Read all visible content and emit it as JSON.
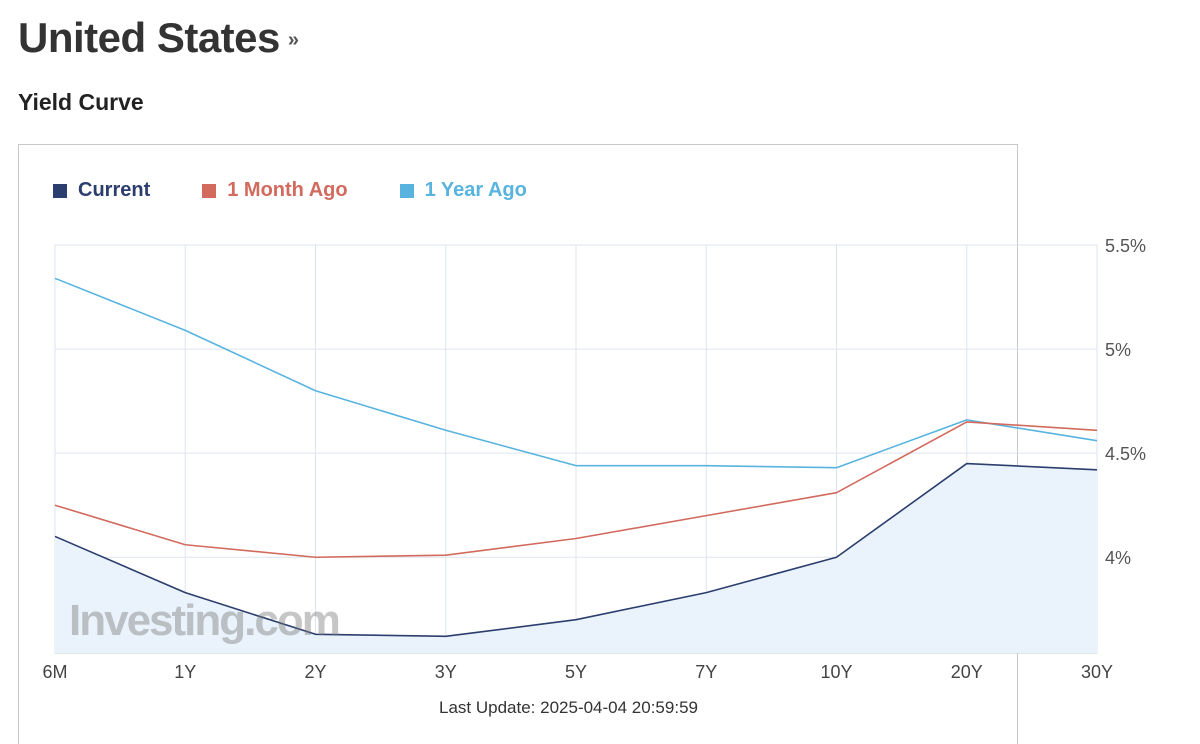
{
  "header": {
    "title": "United States",
    "title_link_icon": "double-chevron-right-icon",
    "subtitle": "Yield Curve"
  },
  "chart_data": {
    "type": "line",
    "categories": [
      "6M",
      "1Y",
      "2Y",
      "3Y",
      "5Y",
      "7Y",
      "10Y",
      "20Y",
      "30Y"
    ],
    "series": [
      {
        "name": "Current",
        "color": "#2c3e6e",
        "fill": "#eaf3fb",
        "values": [
          4.1,
          3.83,
          3.63,
          3.62,
          3.7,
          3.83,
          4.0,
          4.45,
          4.42
        ]
      },
      {
        "name": "1 Month Ago",
        "color": "#d26a5e",
        "values": [
          4.25,
          4.06,
          4.0,
          4.01,
          4.09,
          4.2,
          4.31,
          4.65,
          4.61
        ]
      },
      {
        "name": "1 Year Ago",
        "color": "#58b4de",
        "values": [
          5.34,
          5.09,
          4.8,
          4.61,
          4.44,
          4.44,
          4.43,
          4.66,
          4.56
        ]
      }
    ],
    "y_ticks": [
      "4%",
      "4.5%",
      "5%",
      "5.5%"
    ],
    "y_tick_values": [
      4.0,
      4.5,
      5.0,
      5.5
    ],
    "ylim": [
      3.54,
      5.5
    ],
    "y_axis_side": "right",
    "grid": true,
    "legend_position": "top-left",
    "watermark": "Investing.com",
    "last_update": "Last Update: 2025-04-04 20:59:59"
  }
}
